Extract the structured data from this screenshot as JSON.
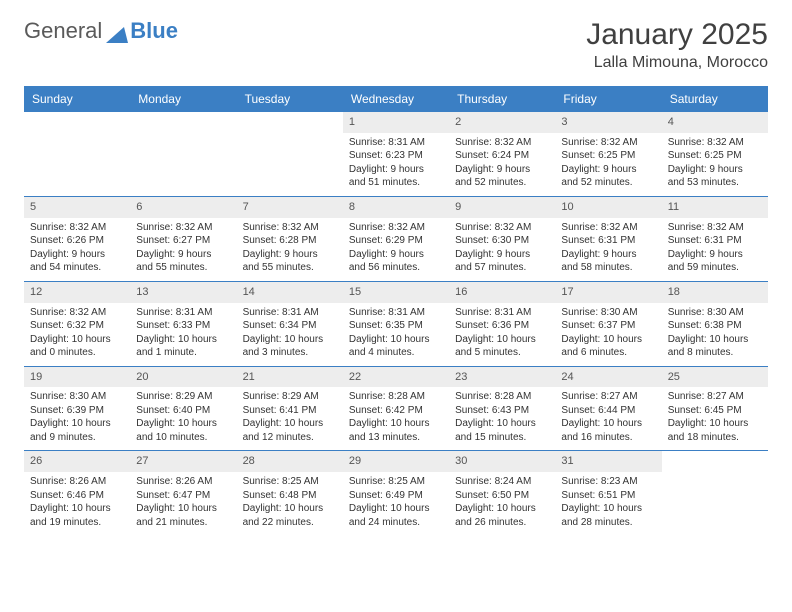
{
  "logo": {
    "text1": "General",
    "text2": "Blue"
  },
  "title": "January 2025",
  "location": "Lalla Mimouna, Morocco",
  "colors": {
    "brand_blue": "#3b7fc4",
    "header_text": "#404040",
    "daynum_bg": "#ededed",
    "body_text": "#333333"
  },
  "weekdays": [
    "Sunday",
    "Monday",
    "Tuesday",
    "Wednesday",
    "Thursday",
    "Friday",
    "Saturday"
  ],
  "weeks": [
    [
      null,
      null,
      null,
      {
        "num": "1",
        "sunrise": "Sunrise: 8:31 AM",
        "sunset": "Sunset: 6:23 PM",
        "daylight": "Daylight: 9 hours and 51 minutes."
      },
      {
        "num": "2",
        "sunrise": "Sunrise: 8:32 AM",
        "sunset": "Sunset: 6:24 PM",
        "daylight": "Daylight: 9 hours and 52 minutes."
      },
      {
        "num": "3",
        "sunrise": "Sunrise: 8:32 AM",
        "sunset": "Sunset: 6:25 PM",
        "daylight": "Daylight: 9 hours and 52 minutes."
      },
      {
        "num": "4",
        "sunrise": "Sunrise: 8:32 AM",
        "sunset": "Sunset: 6:25 PM",
        "daylight": "Daylight: 9 hours and 53 minutes."
      }
    ],
    [
      {
        "num": "5",
        "sunrise": "Sunrise: 8:32 AM",
        "sunset": "Sunset: 6:26 PM",
        "daylight": "Daylight: 9 hours and 54 minutes."
      },
      {
        "num": "6",
        "sunrise": "Sunrise: 8:32 AM",
        "sunset": "Sunset: 6:27 PM",
        "daylight": "Daylight: 9 hours and 55 minutes."
      },
      {
        "num": "7",
        "sunrise": "Sunrise: 8:32 AM",
        "sunset": "Sunset: 6:28 PM",
        "daylight": "Daylight: 9 hours and 55 minutes."
      },
      {
        "num": "8",
        "sunrise": "Sunrise: 8:32 AM",
        "sunset": "Sunset: 6:29 PM",
        "daylight": "Daylight: 9 hours and 56 minutes."
      },
      {
        "num": "9",
        "sunrise": "Sunrise: 8:32 AM",
        "sunset": "Sunset: 6:30 PM",
        "daylight": "Daylight: 9 hours and 57 minutes."
      },
      {
        "num": "10",
        "sunrise": "Sunrise: 8:32 AM",
        "sunset": "Sunset: 6:31 PM",
        "daylight": "Daylight: 9 hours and 58 minutes."
      },
      {
        "num": "11",
        "sunrise": "Sunrise: 8:32 AM",
        "sunset": "Sunset: 6:31 PM",
        "daylight": "Daylight: 9 hours and 59 minutes."
      }
    ],
    [
      {
        "num": "12",
        "sunrise": "Sunrise: 8:32 AM",
        "sunset": "Sunset: 6:32 PM",
        "daylight": "Daylight: 10 hours and 0 minutes."
      },
      {
        "num": "13",
        "sunrise": "Sunrise: 8:31 AM",
        "sunset": "Sunset: 6:33 PM",
        "daylight": "Daylight: 10 hours and 1 minute."
      },
      {
        "num": "14",
        "sunrise": "Sunrise: 8:31 AM",
        "sunset": "Sunset: 6:34 PM",
        "daylight": "Daylight: 10 hours and 3 minutes."
      },
      {
        "num": "15",
        "sunrise": "Sunrise: 8:31 AM",
        "sunset": "Sunset: 6:35 PM",
        "daylight": "Daylight: 10 hours and 4 minutes."
      },
      {
        "num": "16",
        "sunrise": "Sunrise: 8:31 AM",
        "sunset": "Sunset: 6:36 PM",
        "daylight": "Daylight: 10 hours and 5 minutes."
      },
      {
        "num": "17",
        "sunrise": "Sunrise: 8:30 AM",
        "sunset": "Sunset: 6:37 PM",
        "daylight": "Daylight: 10 hours and 6 minutes."
      },
      {
        "num": "18",
        "sunrise": "Sunrise: 8:30 AM",
        "sunset": "Sunset: 6:38 PM",
        "daylight": "Daylight: 10 hours and 8 minutes."
      }
    ],
    [
      {
        "num": "19",
        "sunrise": "Sunrise: 8:30 AM",
        "sunset": "Sunset: 6:39 PM",
        "daylight": "Daylight: 10 hours and 9 minutes."
      },
      {
        "num": "20",
        "sunrise": "Sunrise: 8:29 AM",
        "sunset": "Sunset: 6:40 PM",
        "daylight": "Daylight: 10 hours and 10 minutes."
      },
      {
        "num": "21",
        "sunrise": "Sunrise: 8:29 AM",
        "sunset": "Sunset: 6:41 PM",
        "daylight": "Daylight: 10 hours and 12 minutes."
      },
      {
        "num": "22",
        "sunrise": "Sunrise: 8:28 AM",
        "sunset": "Sunset: 6:42 PM",
        "daylight": "Daylight: 10 hours and 13 minutes."
      },
      {
        "num": "23",
        "sunrise": "Sunrise: 8:28 AM",
        "sunset": "Sunset: 6:43 PM",
        "daylight": "Daylight: 10 hours and 15 minutes."
      },
      {
        "num": "24",
        "sunrise": "Sunrise: 8:27 AM",
        "sunset": "Sunset: 6:44 PM",
        "daylight": "Daylight: 10 hours and 16 minutes."
      },
      {
        "num": "25",
        "sunrise": "Sunrise: 8:27 AM",
        "sunset": "Sunset: 6:45 PM",
        "daylight": "Daylight: 10 hours and 18 minutes."
      }
    ],
    [
      {
        "num": "26",
        "sunrise": "Sunrise: 8:26 AM",
        "sunset": "Sunset: 6:46 PM",
        "daylight": "Daylight: 10 hours and 19 minutes."
      },
      {
        "num": "27",
        "sunrise": "Sunrise: 8:26 AM",
        "sunset": "Sunset: 6:47 PM",
        "daylight": "Daylight: 10 hours and 21 minutes."
      },
      {
        "num": "28",
        "sunrise": "Sunrise: 8:25 AM",
        "sunset": "Sunset: 6:48 PM",
        "daylight": "Daylight: 10 hours and 22 minutes."
      },
      {
        "num": "29",
        "sunrise": "Sunrise: 8:25 AM",
        "sunset": "Sunset: 6:49 PM",
        "daylight": "Daylight: 10 hours and 24 minutes."
      },
      {
        "num": "30",
        "sunrise": "Sunrise: 8:24 AM",
        "sunset": "Sunset: 6:50 PM",
        "daylight": "Daylight: 10 hours and 26 minutes."
      },
      {
        "num": "31",
        "sunrise": "Sunrise: 8:23 AM",
        "sunset": "Sunset: 6:51 PM",
        "daylight": "Daylight: 10 hours and 28 minutes."
      },
      null
    ]
  ]
}
